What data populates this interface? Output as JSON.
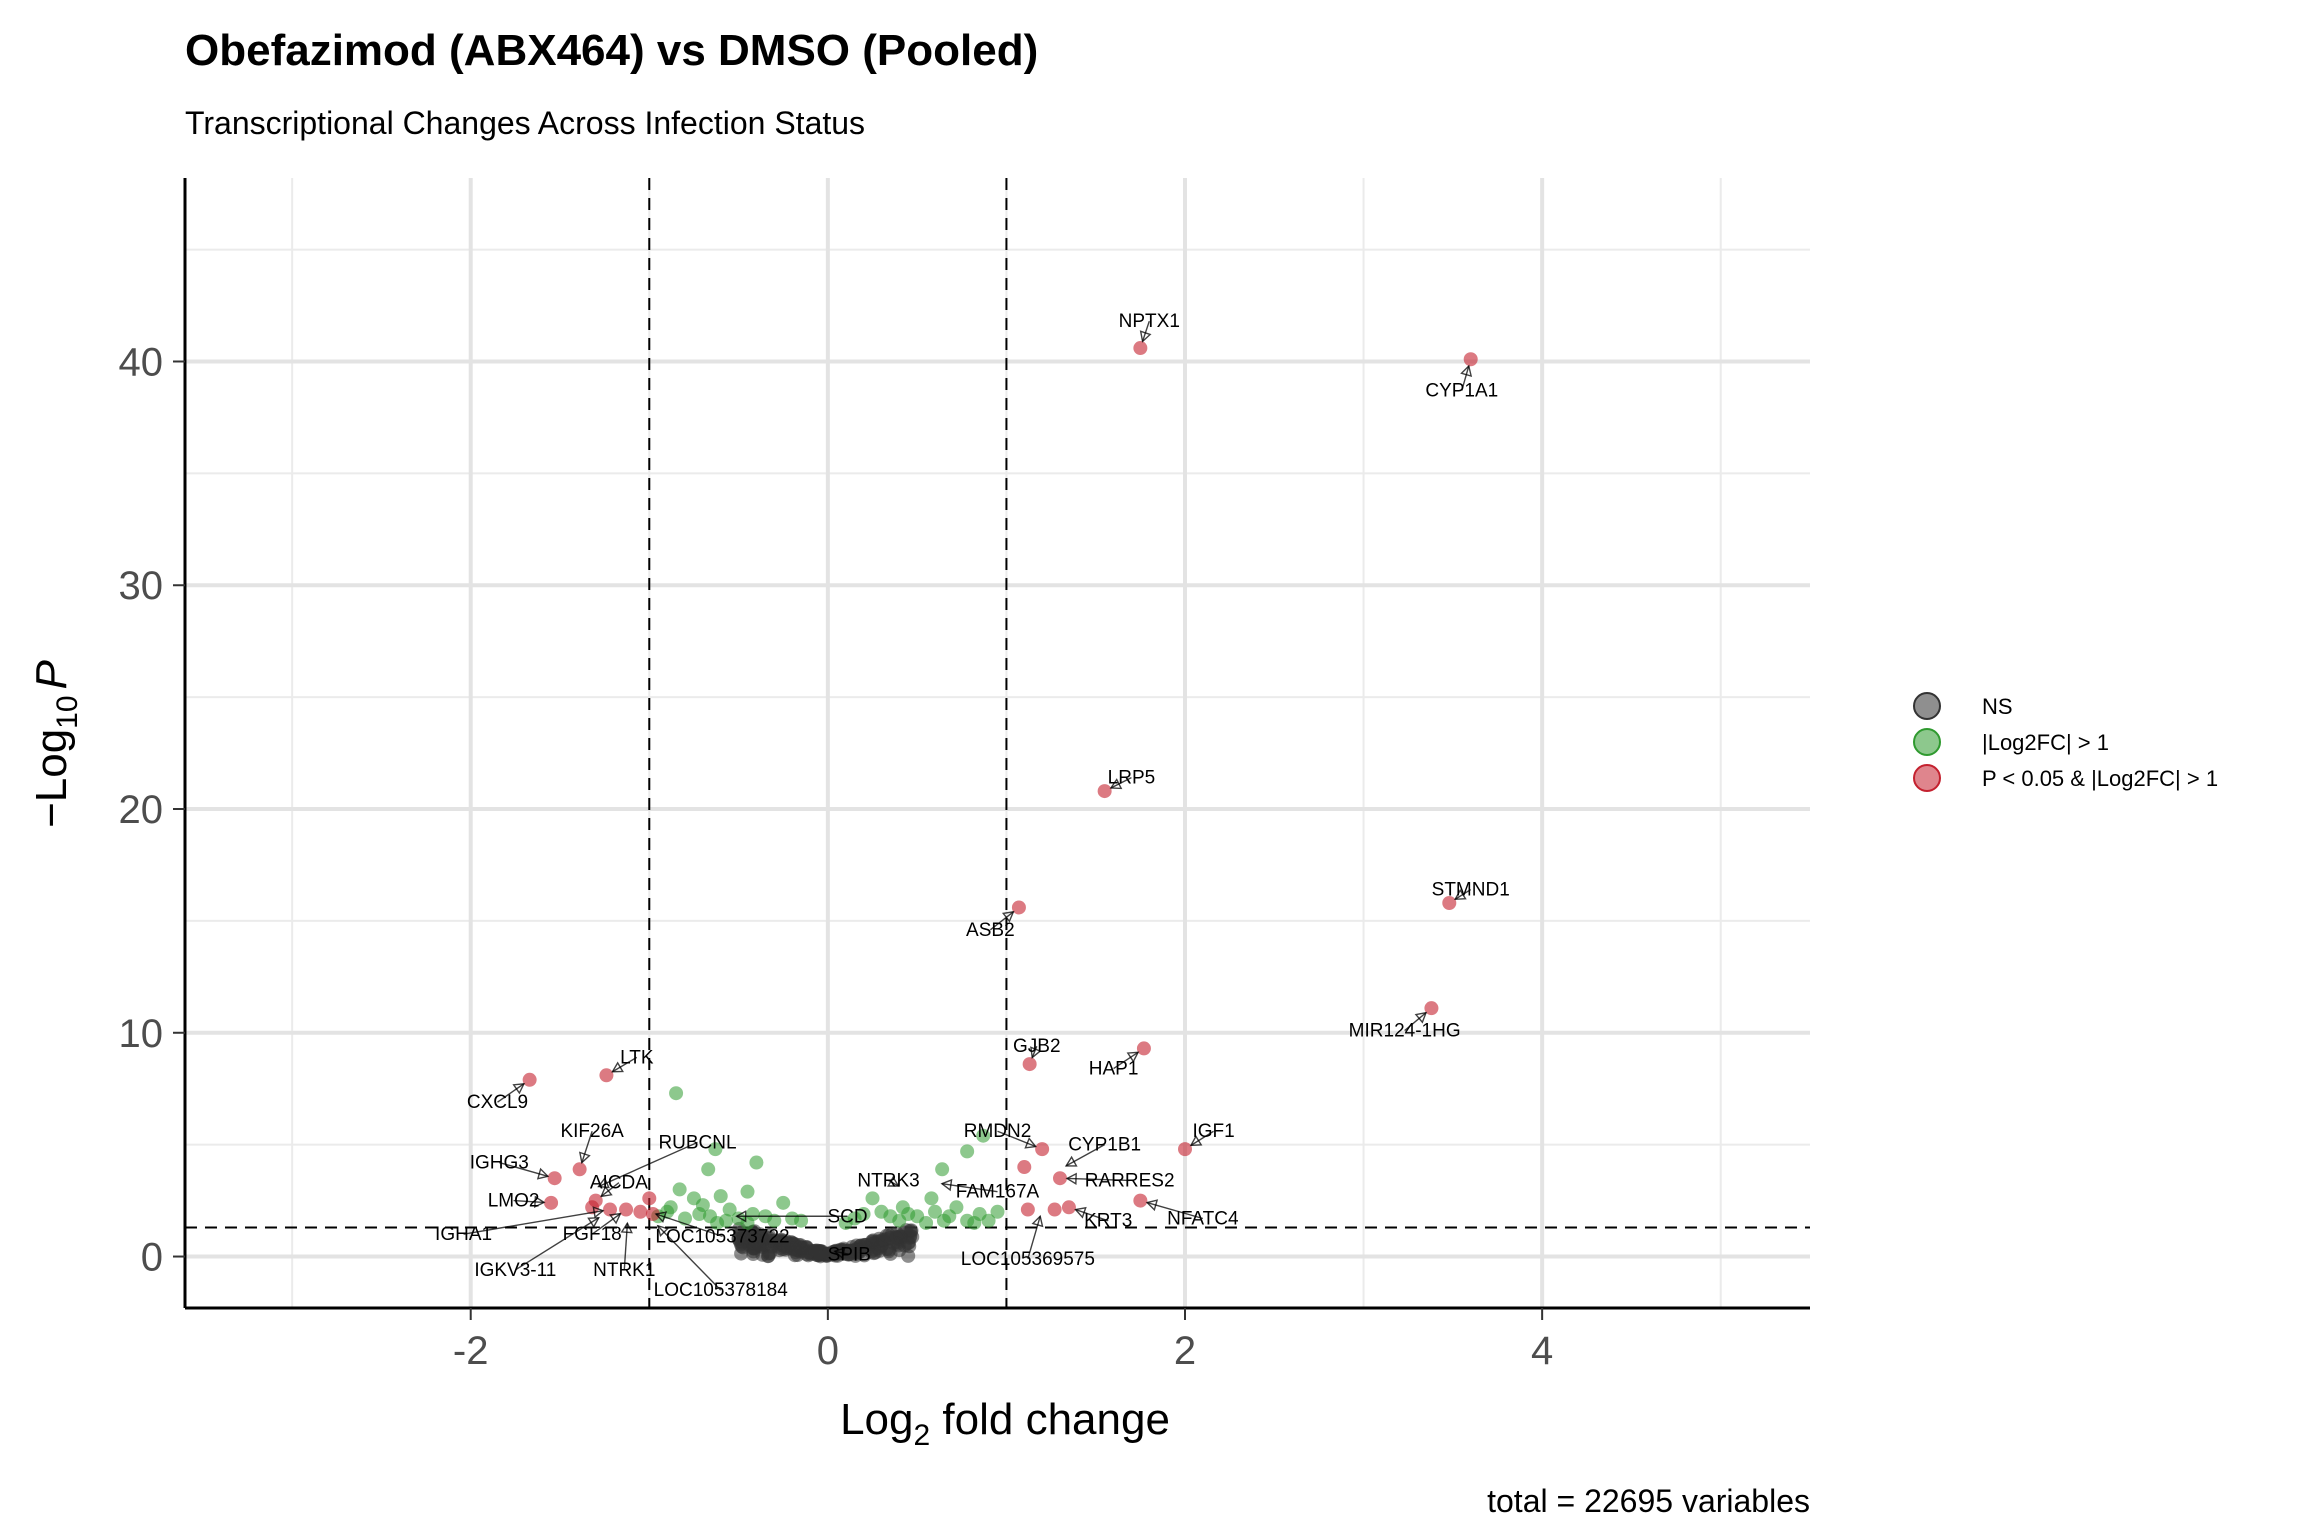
{
  "chart_data": {
    "type": "scatter",
    "title": "Obefazimod (ABX464) vs DMSO (Pooled)",
    "subtitle": "Transcriptional Changes Across Infection Status",
    "xlabel": {
      "base": "Log",
      "sub": "2",
      "rest": " fold change"
    },
    "ylabel": {
      "prefix": "−Log",
      "sub": "10",
      "var": "P"
    },
    "caption": "total = 22695 variables",
    "xlim": [
      -3.6,
      5.5
    ],
    "ylim": [
      -2.3,
      48.2
    ],
    "x_ticks": [
      -2,
      0,
      2,
      4
    ],
    "x_tick_labels": [
      "-2",
      "0",
      "2",
      "4"
    ],
    "y_ticks": [
      0,
      10,
      20,
      30,
      40
    ],
    "y_tick_labels": [
      "0",
      "10",
      "20",
      "30",
      "40"
    ],
    "x_minor": [
      -3,
      -1,
      1,
      3,
      5
    ],
    "y_minor": [
      5,
      15,
      25,
      35,
      45
    ],
    "fc_cutoff": 1,
    "p_cutoff_neglog10": 1.3,
    "grid": true,
    "legend": {
      "position": "right",
      "entries": [
        {
          "label": "NS",
          "color": "#333333"
        },
        {
          "label": "|Log2FC| > 1",
          "color": "#2f9a2f"
        },
        {
          "label": "P < 0.05 & |Log2FC| > 1",
          "color": "#c4212f"
        }
      ]
    },
    "colors": {
      "ns": "#333333",
      "fc": "#2f9a2f",
      "sig": "#c4212f"
    },
    "labeled_genes": [
      {
        "name": "NPTX1",
        "x": 1.75,
        "y": 40.6,
        "lx": 1.8,
        "ly": 41.8
      },
      {
        "name": "CYP1A1",
        "x": 3.6,
        "y": 40.1,
        "lx": 3.55,
        "ly": 38.7
      },
      {
        "name": "LRP5",
        "x": 1.55,
        "y": 20.8,
        "lx": 1.7,
        "ly": 21.4
      },
      {
        "name": "STMND1",
        "x": 3.48,
        "y": 15.8,
        "lx": 3.6,
        "ly": 16.4
      },
      {
        "name": "ASB2",
        "x": 1.07,
        "y": 15.6,
        "lx": 0.91,
        "ly": 14.6
      },
      {
        "name": "MIR124-1HG",
        "x": 3.38,
        "y": 11.1,
        "lx": 3.23,
        "ly": 10.1
      },
      {
        "name": "HAP1",
        "x": 1.77,
        "y": 9.3,
        "lx": 1.6,
        "ly": 8.4
      },
      {
        "name": "GJB2",
        "x": 1.13,
        "y": 8.6,
        "lx": 1.17,
        "ly": 9.4
      },
      {
        "name": "CXCL9",
        "x": -1.67,
        "y": 7.9,
        "lx": -1.85,
        "ly": 6.9
      },
      {
        "name": "LTK",
        "x": -1.24,
        "y": 8.1,
        "lx": -1.07,
        "ly": 8.9
      },
      {
        "name": "IGF1",
        "x": 2.0,
        "y": 4.8,
        "lx": 2.16,
        "ly": 5.6
      },
      {
        "name": "RMDN2",
        "x": 1.2,
        "y": 4.8,
        "lx": 0.95,
        "ly": 5.6
      },
      {
        "name": "CYP1B1",
        "x": 1.3,
        "y": 3.9,
        "lx": 1.55,
        "ly": 5.0
      },
      {
        "name": "KIF26A",
        "x": -1.39,
        "y": 3.9,
        "lx": -1.32,
        "ly": 5.6
      },
      {
        "name": "RUBCNL",
        "x": -1.32,
        "y": 3.0,
        "lx": -0.73,
        "ly": 5.1
      },
      {
        "name": "IGHG3",
        "x": -1.53,
        "y": 3.5,
        "lx": -1.84,
        "ly": 4.2
      },
      {
        "name": "RARRES2",
        "x": 1.3,
        "y": 3.5,
        "lx": 1.69,
        "ly": 3.4
      },
      {
        "name": "NTRK3",
        "x": 0.43,
        "y": 3.0,
        "lx": 0.34,
        "ly": 3.4
      },
      {
        "name": "AICDA",
        "x": -1.3,
        "y": 2.5,
        "lx": -1.17,
        "ly": 3.3
      },
      {
        "name": "FAM167A",
        "x": 0.6,
        "y": 3.3,
        "lx": 0.95,
        "ly": 2.9
      },
      {
        "name": "LMO2",
        "x": -1.55,
        "y": 2.4,
        "lx": -1.76,
        "ly": 2.5
      },
      {
        "name": "NFATC4",
        "x": 1.75,
        "y": 2.5,
        "lx": 2.1,
        "ly": 1.7
      },
      {
        "name": "KRT3",
        "x": 1.35,
        "y": 2.2,
        "lx": 1.57,
        "ly": 1.6
      },
      {
        "name": "SCD",
        "x": -0.55,
        "y": 1.8,
        "lx": 0.11,
        "ly": 1.8
      },
      {
        "name": "IGHA1",
        "x": -1.22,
        "y": 2.1,
        "lx": -2.04,
        "ly": 1.0
      },
      {
        "name": "FGF18",
        "x": -1.13,
        "y": 2.1,
        "lx": -1.32,
        "ly": 1.0
      },
      {
        "name": "LOC105373722",
        "x": -1.0,
        "y": 2.0,
        "lx": -0.59,
        "ly": 0.9
      },
      {
        "name": "SPIB",
        "x": 0.0,
        "y": 0.3,
        "lx": 0.12,
        "ly": 0.1
      },
      {
        "name": "LOC105369575",
        "x": 1.2,
        "y": 2.1,
        "lx": 1.12,
        "ly": -0.1
      },
      {
        "name": "IGKV3-11",
        "x": -1.25,
        "y": 1.9,
        "lx": -1.75,
        "ly": -0.6
      },
      {
        "name": "NTRK1",
        "x": -1.12,
        "y": 1.8,
        "lx": -1.14,
        "ly": -0.6
      },
      {
        "name": "LOC105378184",
        "x": -0.98,
        "y": 1.6,
        "lx": -0.6,
        "ly": -1.5
      }
    ],
    "significant_points": [
      [
        1.75,
        40.6
      ],
      [
        3.6,
        40.1
      ],
      [
        1.55,
        20.8
      ],
      [
        3.48,
        15.8
      ],
      [
        1.07,
        15.6
      ],
      [
        3.38,
        11.1
      ],
      [
        1.77,
        9.3
      ],
      [
        1.13,
        8.6
      ],
      [
        -1.67,
        7.9
      ],
      [
        -1.24,
        8.1
      ],
      [
        2.0,
        4.8
      ],
      [
        1.2,
        4.8
      ],
      [
        1.1,
        4.0
      ],
      [
        -1.39,
        3.9
      ],
      [
        -1.53,
        3.5
      ],
      [
        1.3,
        3.5
      ],
      [
        1.75,
        2.5
      ],
      [
        1.35,
        2.2
      ],
      [
        1.12,
        2.1
      ],
      [
        1.27,
        2.1
      ],
      [
        -1.3,
        2.5
      ],
      [
        -1.55,
        2.4
      ],
      [
        -1.13,
        2.1
      ],
      [
        -1.05,
        2.0
      ],
      [
        -1.0,
        2.6
      ],
      [
        -1.22,
        2.1
      ],
      [
        -1.32,
        2.2
      ],
      [
        -0.98,
        1.9
      ]
    ],
    "fc_points": [
      [
        -0.85,
        7.3
      ],
      [
        -0.63,
        4.8
      ],
      [
        -0.67,
        3.9
      ],
      [
        -0.4,
        4.2
      ],
      [
        0.87,
        5.4
      ],
      [
        0.78,
        4.7
      ],
      [
        0.64,
        3.9
      ],
      [
        -0.83,
        3.0
      ],
      [
        -0.6,
        2.7
      ],
      [
        -0.45,
        2.9
      ],
      [
        -0.25,
        2.4
      ],
      [
        -0.7,
        2.3
      ],
      [
        -0.55,
        2.1
      ],
      [
        0.25,
        2.6
      ],
      [
        0.42,
        2.2
      ],
      [
        0.58,
        2.6
      ],
      [
        0.72,
        2.2
      ],
      [
        0.85,
        1.9
      ],
      [
        0.95,
        2.0
      ],
      [
        0.68,
        1.8
      ],
      [
        0.5,
        1.8
      ],
      [
        0.35,
        1.8
      ],
      [
        -0.95,
        1.8
      ],
      [
        -0.9,
        2.0
      ],
      [
        -0.8,
        1.7
      ],
      [
        -0.72,
        1.9
      ],
      [
        -0.66,
        1.8
      ],
      [
        -0.5,
        1.7
      ],
      [
        -0.42,
        1.9
      ],
      [
        -0.35,
        1.8
      ],
      [
        -0.3,
        1.6
      ],
      [
        -0.2,
        1.7
      ],
      [
        -0.15,
        1.6
      ],
      [
        0.15,
        1.7
      ],
      [
        0.2,
        1.9
      ],
      [
        0.3,
        2.0
      ],
      [
        0.4,
        1.6
      ],
      [
        0.55,
        1.5
      ],
      [
        0.65,
        1.6
      ],
      [
        0.78,
        1.6
      ],
      [
        0.9,
        1.6
      ],
      [
        -0.88,
        2.2
      ],
      [
        -0.75,
        2.6
      ],
      [
        -0.62,
        1.5
      ],
      [
        -0.57,
        1.6
      ],
      [
        -0.45,
        1.5
      ],
      [
        0.1,
        1.5
      ],
      [
        0.45,
        1.9
      ],
      [
        0.6,
        2.0
      ],
      [
        0.82,
        1.5
      ]
    ],
    "ns_cluster": {
      "xmin": -0.5,
      "xmax": 0.5,
      "count": 260
    }
  }
}
